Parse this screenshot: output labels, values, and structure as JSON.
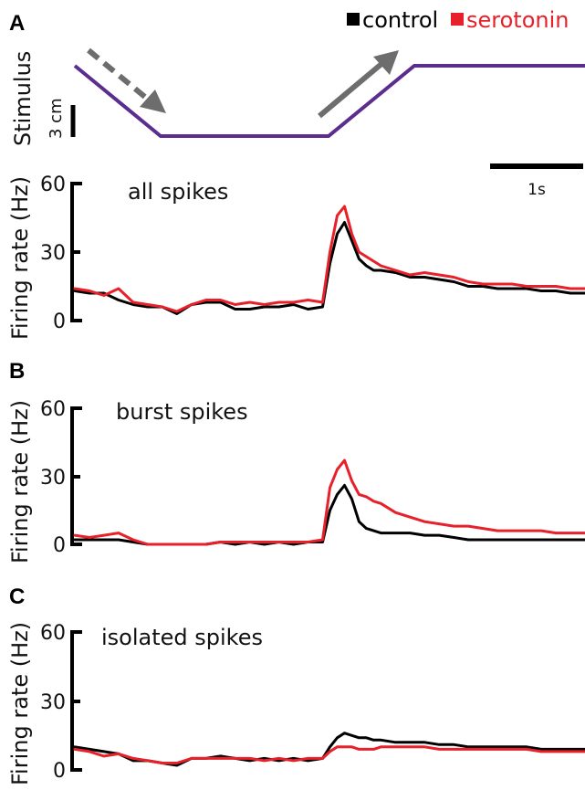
{
  "legend": {
    "control_label": "control",
    "serotonin_label": "serotonin",
    "control_color": "#000000",
    "serotonin_color": "#e8202a"
  },
  "stimulus": {
    "axis_label": "Stimulus",
    "scale_label": "3 cm",
    "time_scale_label": "1s",
    "trace_color": "#5b2d8e",
    "arrow_color": "#6d6d6d"
  },
  "chart_data": [
    {
      "type": "line",
      "panel": "A",
      "title": "all spikes",
      "ylabel": "Firing rate (Hz)",
      "ylim": [
        0,
        60
      ],
      "yticks": [
        0,
        30,
        60
      ],
      "xlim": [
        0,
        3.5
      ],
      "grid": false,
      "series": [
        {
          "name": "control",
          "color": "#000000",
          "x": [
            0,
            0.1,
            0.2,
            0.3,
            0.4,
            0.5,
            0.6,
            0.7,
            0.8,
            0.9,
            1.0,
            1.1,
            1.2,
            1.3,
            1.4,
            1.5,
            1.6,
            1.7,
            1.75,
            1.8,
            1.85,
            1.9,
            1.95,
            2.0,
            2.05,
            2.1,
            2.2,
            2.3,
            2.4,
            2.5,
            2.6,
            2.7,
            2.8,
            2.9,
            3.0,
            3.1,
            3.2,
            3.3,
            3.4,
            3.5
          ],
          "y": [
            13,
            12,
            12,
            9,
            7,
            6,
            6,
            3,
            7,
            8,
            8,
            5,
            5,
            6,
            6,
            7,
            5,
            6,
            25,
            38,
            43,
            35,
            27,
            24,
            22,
            22,
            21,
            19,
            19,
            18,
            17,
            15,
            15,
            14,
            14,
            14,
            13,
            13,
            12,
            12
          ]
        },
        {
          "name": "serotonin",
          "color": "#e8202a",
          "x": [
            0,
            0.1,
            0.2,
            0.3,
            0.4,
            0.5,
            0.6,
            0.7,
            0.8,
            0.9,
            1.0,
            1.1,
            1.2,
            1.3,
            1.4,
            1.5,
            1.6,
            1.7,
            1.75,
            1.8,
            1.85,
            1.9,
            1.95,
            2.0,
            2.05,
            2.1,
            2.2,
            2.3,
            2.4,
            2.5,
            2.6,
            2.7,
            2.8,
            2.9,
            3.0,
            3.1,
            3.2,
            3.3,
            3.4,
            3.5
          ],
          "y": [
            14,
            13,
            11,
            14,
            8,
            7,
            6,
            4,
            7,
            9,
            9,
            7,
            8,
            7,
            8,
            8,
            9,
            8,
            30,
            46,
            50,
            38,
            30,
            28,
            26,
            24,
            22,
            20,
            21,
            20,
            19,
            17,
            16,
            16,
            16,
            15,
            15,
            15,
            14,
            14
          ]
        }
      ]
    },
    {
      "type": "line",
      "panel": "B",
      "title": "burst spikes",
      "ylabel": "Firing rate (Hz)",
      "ylim": [
        0,
        60
      ],
      "yticks": [
        0,
        30,
        60
      ],
      "xlim": [
        0,
        3.5
      ],
      "grid": false,
      "series": [
        {
          "name": "control",
          "color": "#000000",
          "x": [
            0,
            0.1,
            0.2,
            0.3,
            0.4,
            0.5,
            0.6,
            0.7,
            0.8,
            0.9,
            1.0,
            1.1,
            1.2,
            1.3,
            1.4,
            1.5,
            1.6,
            1.7,
            1.75,
            1.8,
            1.85,
            1.9,
            1.95,
            2.0,
            2.05,
            2.1,
            2.2,
            2.3,
            2.4,
            2.5,
            2.6,
            2.7,
            2.8,
            2.9,
            3.0,
            3.1,
            3.2,
            3.3,
            3.4,
            3.5
          ],
          "y": [
            2,
            2,
            2,
            2,
            1,
            0,
            0,
            0,
            0,
            0,
            1,
            0,
            1,
            0,
            1,
            0,
            1,
            1,
            15,
            22,
            26,
            20,
            10,
            7,
            6,
            5,
            5,
            5,
            4,
            4,
            3,
            2,
            2,
            2,
            2,
            2,
            2,
            2,
            2,
            2
          ]
        },
        {
          "name": "serotonin",
          "color": "#e8202a",
          "x": [
            0,
            0.1,
            0.2,
            0.3,
            0.4,
            0.5,
            0.6,
            0.7,
            0.8,
            0.9,
            1.0,
            1.1,
            1.2,
            1.3,
            1.4,
            1.5,
            1.6,
            1.7,
            1.75,
            1.8,
            1.85,
            1.9,
            1.95,
            2.0,
            2.05,
            2.1,
            2.2,
            2.3,
            2.4,
            2.5,
            2.6,
            2.7,
            2.8,
            2.9,
            3.0,
            3.1,
            3.2,
            3.3,
            3.4,
            3.5
          ],
          "y": [
            4,
            3,
            4,
            5,
            2,
            0,
            0,
            0,
            0,
            0,
            1,
            1,
            1,
            1,
            1,
            1,
            1,
            2,
            25,
            33,
            37,
            28,
            22,
            21,
            19,
            18,
            14,
            12,
            10,
            9,
            8,
            8,
            7,
            6,
            6,
            6,
            6,
            5,
            5,
            5
          ]
        }
      ]
    },
    {
      "type": "line",
      "panel": "C",
      "title": "isolated spikes",
      "ylabel": "Firing rate (Hz)",
      "ylim": [
        0,
        60
      ],
      "yticks": [
        0,
        30,
        60
      ],
      "xlim": [
        0,
        3.5
      ],
      "grid": false,
      "series": [
        {
          "name": "control",
          "color": "#000000",
          "x": [
            0,
            0.1,
            0.2,
            0.3,
            0.4,
            0.5,
            0.6,
            0.7,
            0.8,
            0.9,
            1.0,
            1.1,
            1.2,
            1.3,
            1.4,
            1.5,
            1.6,
            1.7,
            1.75,
            1.8,
            1.85,
            1.9,
            1.95,
            2.0,
            2.05,
            2.1,
            2.2,
            2.3,
            2.4,
            2.5,
            2.6,
            2.7,
            2.8,
            2.9,
            3.0,
            3.1,
            3.2,
            3.3,
            3.4,
            3.5
          ],
          "y": [
            10,
            9,
            8,
            7,
            4,
            4,
            3,
            2,
            5,
            5,
            6,
            5,
            4,
            5,
            4,
            5,
            4,
            5,
            10,
            14,
            16,
            15,
            14,
            14,
            13,
            13,
            12,
            12,
            12,
            11,
            11,
            10,
            10,
            10,
            10,
            10,
            9,
            9,
            9,
            9
          ]
        },
        {
          "name": "serotonin",
          "color": "#e8202a",
          "x": [
            0,
            0.1,
            0.2,
            0.3,
            0.4,
            0.5,
            0.6,
            0.7,
            0.8,
            0.9,
            1.0,
            1.1,
            1.2,
            1.3,
            1.4,
            1.5,
            1.6,
            1.7,
            1.75,
            1.8,
            1.85,
            1.9,
            1.95,
            2.0,
            2.05,
            2.1,
            2.2,
            2.3,
            2.4,
            2.5,
            2.6,
            2.7,
            2.8,
            2.9,
            3.0,
            3.1,
            3.2,
            3.3,
            3.4,
            3.5
          ],
          "y": [
            9,
            8,
            6,
            7,
            5,
            4,
            3,
            3,
            5,
            5,
            5,
            5,
            5,
            4,
            5,
            4,
            5,
            5,
            8,
            10,
            10,
            10,
            9,
            9,
            9,
            10,
            10,
            10,
            10,
            9,
            9,
            9,
            9,
            9,
            9,
            9,
            8,
            8,
            8,
            8
          ]
        }
      ]
    }
  ]
}
